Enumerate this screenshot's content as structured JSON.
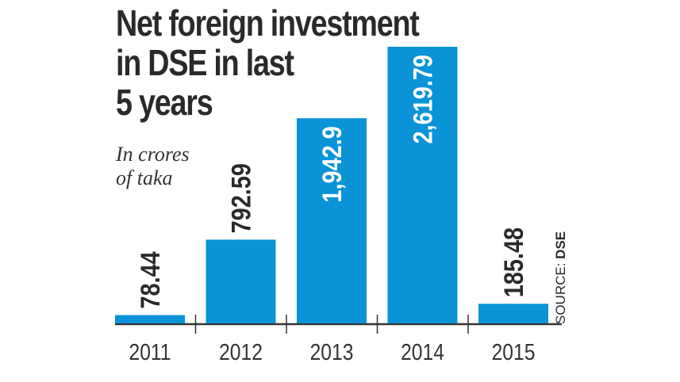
{
  "chart_data": {
    "type": "bar",
    "title_lines": [
      "Net foreign investment",
      "in DSE in last",
      "5 years"
    ],
    "subtitle_lines": [
      "In crores",
      "of taka"
    ],
    "categories": [
      "2011",
      "2012",
      "2013",
      "2014",
      "2015"
    ],
    "values": [
      78.44,
      792.59,
      1942.9,
      2619.79,
      185.48
    ],
    "value_labels": [
      "78.44",
      "792.59",
      "1,942.9",
      "2,619.79",
      "185.48"
    ],
    "source_prefix": "SOURCE: ",
    "source": "DSE",
    "xlabel": "",
    "ylabel": "In crores of taka",
    "ylim": [
      0,
      2619.79
    ],
    "grid": false,
    "bar_color": "#0a93d6",
    "axis_color": "#333333"
  }
}
